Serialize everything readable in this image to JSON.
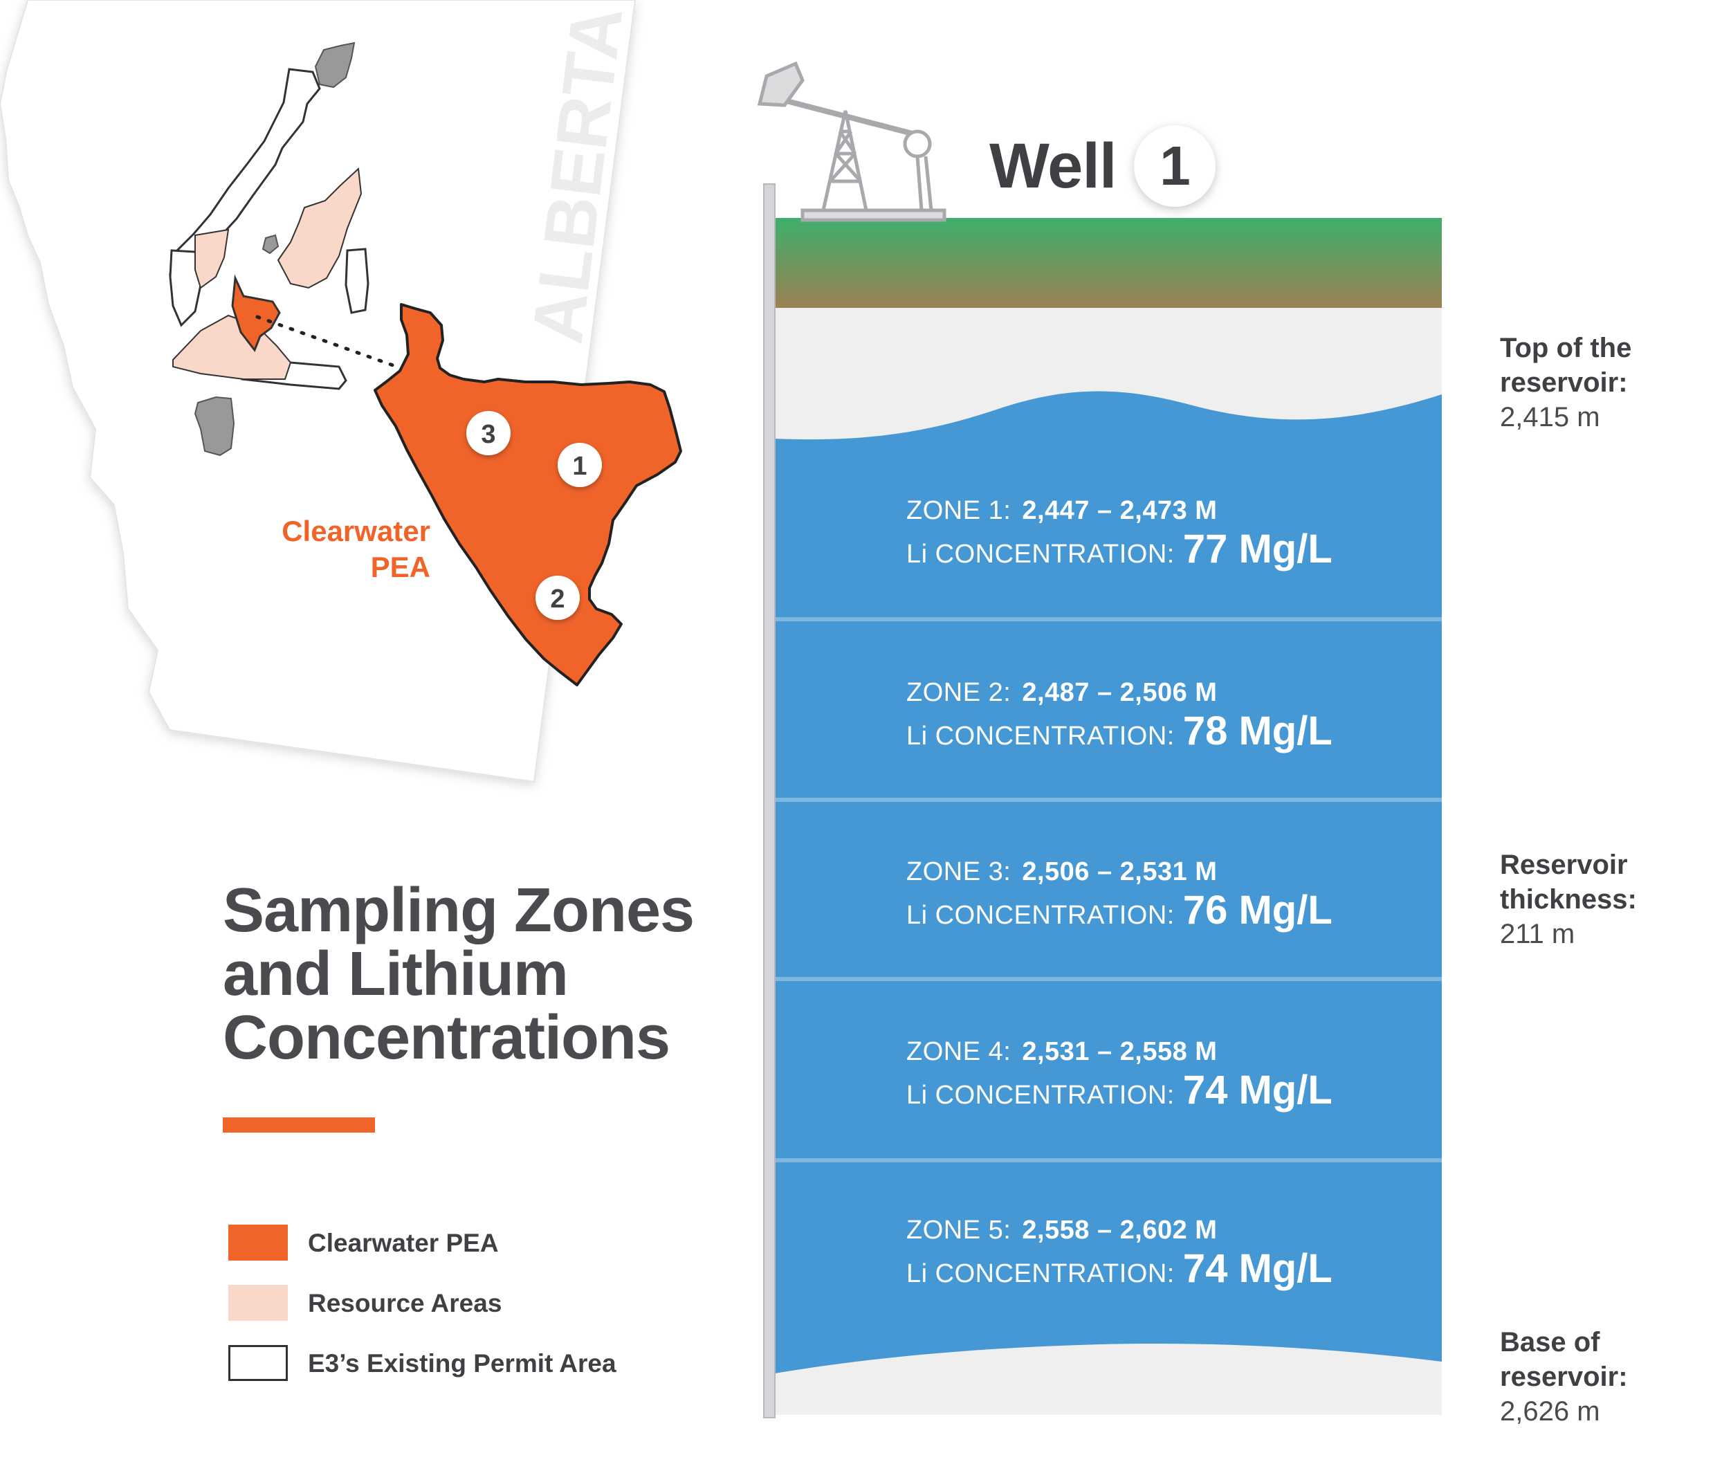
{
  "map": {
    "province_label": "ALBERTA",
    "project_label_line1": "Clearwater",
    "project_label_line2": "PEA",
    "well_markers": [
      "3",
      "1",
      "2"
    ],
    "colors": {
      "clearwater_pea": "#f0642a",
      "resource_areas": "#fad8c9",
      "province_fill": "#ffffff",
      "other_areas": "#999999"
    }
  },
  "title": {
    "line1": "Sampling Zones",
    "line2": "and Lithium",
    "line3": "Concentrations"
  },
  "legend": [
    {
      "label": "Clearwater PEA",
      "swatch": "#f0642a",
      "border": "#f0642a"
    },
    {
      "label": "Resource Areas",
      "swatch": "#fad8c9",
      "border": "#fad8c9"
    },
    {
      "label": "E3’s Existing Permit Area",
      "swatch": "#ffffff",
      "border": "#333333"
    }
  ],
  "well": {
    "label": "Well",
    "number": "1",
    "colors": {
      "ground_top": "#3daf6b",
      "ground_bottom": "#9c8052",
      "reservoir": "#4598d3",
      "rock": "#efefef"
    }
  },
  "zones": [
    {
      "name": "ZONE 1:",
      "range": "2,447 – 2,473 M",
      "conc_label": "Li CONCENTRATION:",
      "value": "77 Mg/L"
    },
    {
      "name": "ZONE 2:",
      "range": "2,487 – 2,506 M",
      "conc_label": "Li CONCENTRATION:",
      "value": "78 Mg/L"
    },
    {
      "name": "ZONE 3:",
      "range": "2,506 – 2,531 M",
      "conc_label": "Li CONCENTRATION:",
      "value": "76 Mg/L"
    },
    {
      "name": "ZONE 4:",
      "range": "2,531 – 2,558 M",
      "conc_label": "Li CONCENTRATION:",
      "value": "74 Mg/L"
    },
    {
      "name": "ZONE 5:",
      "range": "2,558 – 2,602 M",
      "conc_label": "Li CONCENTRATION:",
      "value": "74 Mg/L"
    }
  ],
  "annotations": {
    "top": {
      "line1": "Top of the",
      "line2": "reservoir:",
      "value": "2,415 m"
    },
    "thickness": {
      "line1": "Reservoir",
      "line2": "thickness:",
      "value": "211 m"
    },
    "base": {
      "line1": "Base of",
      "line2": "reservoir:",
      "value": "2,626 m"
    }
  }
}
